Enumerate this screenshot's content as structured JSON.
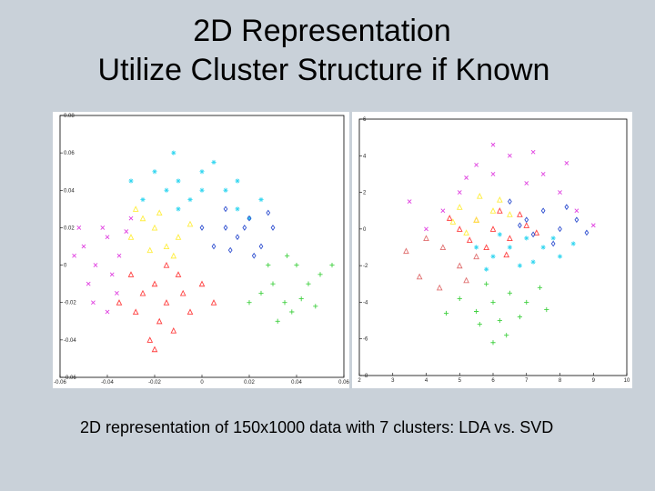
{
  "slide": {
    "title_line1": "2D Representation",
    "title_line2": "Utilize Cluster Structure if Known",
    "caption": "2D representation of  150x1000 data with 7 clusters: LDA vs. SVD"
  },
  "cluster_colors": [
    "#ff4040",
    "#33d6f0",
    "#3050d0",
    "#40d040",
    "#e040e0",
    "#ffee40",
    "#e07070"
  ],
  "chart_data": [
    {
      "type": "scatter",
      "title": "",
      "xlim": [
        -0.06,
        0.06
      ],
      "ylim": [
        -0.06,
        0.08
      ],
      "xticks": [
        -0.06,
        -0.04,
        -0.02,
        0,
        0.02,
        0.04,
        0.06
      ],
      "xtick_labels": [
        "-0.06",
        "-0.04",
        "-0.02",
        "0",
        "0.02",
        "0.04",
        "0.06"
      ],
      "yticks": [
        -0.06,
        -0.04,
        -0.02,
        0,
        0.02,
        0.04,
        0.06,
        0.08
      ],
      "ytick_labels": [
        "-0.06",
        "-0.04",
        "-0.02",
        "0",
        "0.02",
        "0.04",
        "0.06",
        "0.08"
      ],
      "grid": false,
      "series": [
        {
          "color": "#ff4040",
          "marker": "triangle",
          "points": [
            [
              -0.02,
              -0.01
            ],
            [
              -0.015,
              -0.02
            ],
            [
              -0.01,
              -0.005
            ],
            [
              -0.025,
              -0.015
            ],
            [
              -0.005,
              -0.025
            ],
            [
              -0.018,
              -0.03
            ],
            [
              0.0,
              -0.01
            ],
            [
              -0.03,
              -0.005
            ],
            [
              -0.012,
              -0.035
            ],
            [
              -0.022,
              -0.04
            ],
            [
              0.005,
              -0.02
            ],
            [
              -0.008,
              -0.015
            ],
            [
              -0.028,
              -0.025
            ],
            [
              -0.015,
              0.0
            ],
            [
              -0.035,
              -0.02
            ],
            [
              -0.02,
              -0.045
            ]
          ]
        },
        {
          "color": "#33d6f0",
          "marker": "star",
          "points": [
            [
              -0.01,
              0.045
            ],
            [
              0.0,
              0.05
            ],
            [
              -0.005,
              0.035
            ],
            [
              0.01,
              0.04
            ],
            [
              -0.015,
              0.04
            ],
            [
              0.015,
              0.03
            ],
            [
              -0.02,
              0.05
            ],
            [
              0.005,
              0.055
            ],
            [
              0.02,
              0.025
            ],
            [
              -0.01,
              0.03
            ],
            [
              0.0,
              0.04
            ],
            [
              -0.025,
              0.035
            ],
            [
              0.015,
              0.045
            ],
            [
              -0.03,
              0.045
            ],
            [
              0.025,
              0.035
            ],
            [
              -0.012,
              0.06
            ]
          ]
        },
        {
          "color": "#3050d0",
          "marker": "diamond",
          "points": [
            [
              0.01,
              0.02
            ],
            [
              0.015,
              0.015
            ],
            [
              0.02,
              0.025
            ],
            [
              0.005,
              0.01
            ],
            [
              0.025,
              0.01
            ],
            [
              0.018,
              0.02
            ],
            [
              0.03,
              0.02
            ],
            [
              0.01,
              0.03
            ],
            [
              0.022,
              0.005
            ],
            [
              0.012,
              0.008
            ],
            [
              0.028,
              0.028
            ],
            [
              0.0,
              0.02
            ]
          ]
        },
        {
          "color": "#40d040",
          "marker": "plus",
          "points": [
            [
              0.03,
              -0.01
            ],
            [
              0.04,
              0.0
            ],
            [
              0.035,
              -0.02
            ],
            [
              0.045,
              -0.01
            ],
            [
              0.025,
              -0.015
            ],
            [
              0.05,
              -0.005
            ],
            [
              0.038,
              -0.025
            ],
            [
              0.028,
              0.0
            ],
            [
              0.042,
              -0.018
            ],
            [
              0.055,
              0.0
            ],
            [
              0.032,
              -0.03
            ],
            [
              0.048,
              -0.022
            ],
            [
              0.036,
              0.005
            ],
            [
              0.02,
              -0.02
            ]
          ]
        },
        {
          "color": "#e040e0",
          "marker": "x",
          "points": [
            [
              -0.05,
              0.01
            ],
            [
              -0.045,
              0.0
            ],
            [
              -0.04,
              0.015
            ],
            [
              -0.035,
              0.005
            ],
            [
              -0.048,
              -0.01
            ],
            [
              -0.042,
              0.02
            ],
            [
              -0.038,
              -0.005
            ],
            [
              -0.052,
              0.02
            ],
            [
              -0.032,
              0.018
            ],
            [
              -0.046,
              -0.02
            ],
            [
              -0.036,
              -0.015
            ],
            [
              -0.03,
              0.025
            ],
            [
              -0.054,
              0.005
            ],
            [
              -0.04,
              -0.025
            ]
          ]
        },
        {
          "color": "#ffee40",
          "marker": "triangle",
          "points": [
            [
              -0.02,
              0.02
            ],
            [
              -0.015,
              0.01
            ],
            [
              -0.025,
              0.025
            ],
            [
              -0.01,
              0.015
            ],
            [
              -0.03,
              0.015
            ],
            [
              -0.018,
              0.028
            ],
            [
              -0.012,
              0.005
            ],
            [
              -0.022,
              0.008
            ],
            [
              -0.028,
              0.03
            ],
            [
              -0.005,
              0.022
            ]
          ]
        }
      ]
    },
    {
      "type": "scatter",
      "title": "",
      "xlim": [
        2,
        10
      ],
      "ylim": [
        -8,
        6
      ],
      "xticks": [
        2,
        3,
        4,
        5,
        6,
        7,
        8,
        9,
        10
      ],
      "xtick_labels": [
        "2",
        "3",
        "4",
        "5",
        "6",
        "7",
        "8",
        "9",
        "10"
      ],
      "yticks": [
        -8,
        -6,
        -4,
        -2,
        0,
        2,
        4,
        6
      ],
      "ytick_labels": [
        "-8",
        "-6",
        "-4",
        "-2",
        "0",
        "2",
        "4",
        "6"
      ],
      "grid": false,
      "series": [
        {
          "color": "#ff4040",
          "marker": "triangle",
          "points": [
            [
              6,
              0
            ],
            [
              5.5,
              0.5
            ],
            [
              6.5,
              -0.5
            ],
            [
              7,
              0.2
            ],
            [
              5,
              0
            ],
            [
              6.2,
              1
            ],
            [
              5.8,
              -1
            ],
            [
              6.8,
              0.8
            ],
            [
              5.3,
              -0.6
            ],
            [
              7.3,
              -0.2
            ],
            [
              4.7,
              0.6
            ],
            [
              6.4,
              -1.4
            ]
          ]
        },
        {
          "color": "#33d6f0",
          "marker": "star",
          "points": [
            [
              6.5,
              -1
            ],
            [
              7,
              -0.5
            ],
            [
              6,
              -1.5
            ],
            [
              7.5,
              -1
            ],
            [
              5.5,
              -1
            ],
            [
              6.8,
              -2
            ],
            [
              7.8,
              -0.5
            ],
            [
              6.2,
              -0.3
            ],
            [
              8,
              -1.5
            ],
            [
              5.8,
              -2.2
            ],
            [
              7.2,
              -1.8
            ],
            [
              8.4,
              -0.8
            ]
          ]
        },
        {
          "color": "#3050d0",
          "marker": "diamond",
          "points": [
            [
              7,
              0.5
            ],
            [
              7.5,
              1
            ],
            [
              8,
              0
            ],
            [
              6.5,
              1.5
            ],
            [
              8.5,
              0.5
            ],
            [
              7.2,
              -0.3
            ],
            [
              8.2,
              1.2
            ],
            [
              6.8,
              0.2
            ],
            [
              7.8,
              -0.8
            ],
            [
              8.8,
              -0.2
            ]
          ]
        },
        {
          "color": "#40d040",
          "marker": "plus",
          "points": [
            [
              6,
              -4
            ],
            [
              6.5,
              -3.5
            ],
            [
              5.5,
              -4.5
            ],
            [
              7,
              -4
            ],
            [
              6.2,
              -5
            ],
            [
              5.8,
              -3
            ],
            [
              6.8,
              -4.8
            ],
            [
              5,
              -3.8
            ],
            [
              7.4,
              -3.2
            ],
            [
              6.4,
              -5.8
            ],
            [
              5.6,
              -5.2
            ],
            [
              7.6,
              -4.4
            ],
            [
              4.6,
              -4.6
            ],
            [
              6,
              -6.2
            ]
          ]
        },
        {
          "color": "#e040e0",
          "marker": "x",
          "points": [
            [
              5,
              2
            ],
            [
              6,
              3
            ],
            [
              7,
              2.5
            ],
            [
              4.5,
              1
            ],
            [
              8,
              2
            ],
            [
              5.5,
              3.5
            ],
            [
              6.5,
              4
            ],
            [
              7.5,
              3
            ],
            [
              4,
              0
            ],
            [
              8.5,
              1
            ],
            [
              3.5,
              1.5
            ],
            [
              9,
              0.2
            ],
            [
              6,
              4.6
            ],
            [
              7.2,
              4.2
            ],
            [
              5.2,
              2.8
            ],
            [
              8.2,
              3.6
            ]
          ]
        },
        {
          "color": "#ffee40",
          "marker": "triangle",
          "points": [
            [
              5.5,
              0.5
            ],
            [
              6,
              1
            ],
            [
              5,
              1.2
            ],
            [
              6.5,
              0.8
            ],
            [
              5.2,
              -0.2
            ],
            [
              4.8,
              0.4
            ],
            [
              6.2,
              1.6
            ],
            [
              5.6,
              1.8
            ]
          ]
        },
        {
          "color": "#e07070",
          "marker": "triangle",
          "points": [
            [
              4.5,
              -1
            ],
            [
              5,
              -2
            ],
            [
              4,
              -0.5
            ],
            [
              5.5,
              -1.5
            ],
            [
              3.8,
              -2.6
            ],
            [
              4.4,
              -3.2
            ],
            [
              5.2,
              -2.8
            ],
            [
              3.4,
              -1.2
            ]
          ]
        }
      ]
    }
  ]
}
